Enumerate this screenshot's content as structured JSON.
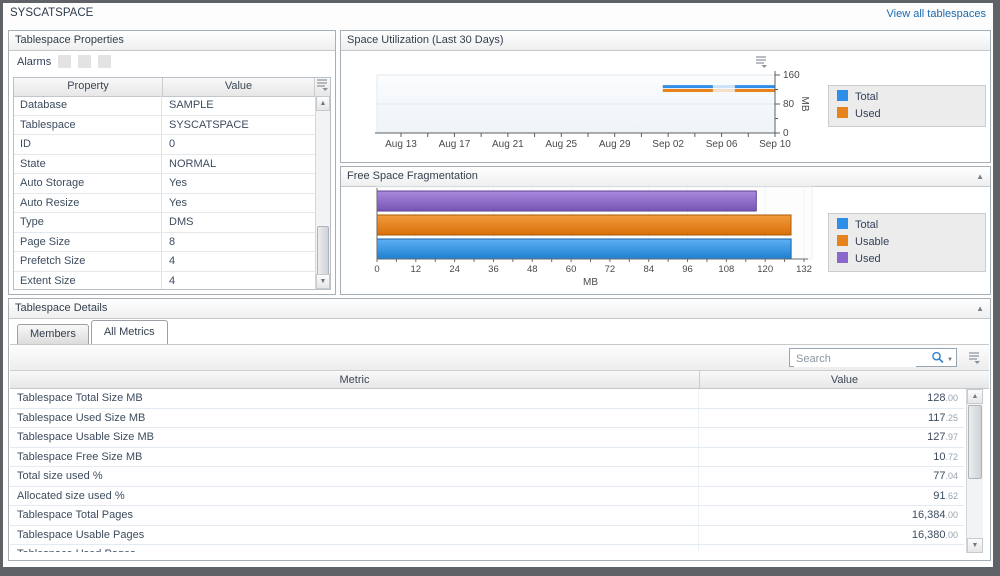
{
  "header": {
    "title": "SYSCATSPACE",
    "view_all_link": "View all tablespaces"
  },
  "properties_panel": {
    "title": "Tablespace Properties",
    "alarms_label": "Alarms",
    "columns": [
      "Property",
      "Value"
    ],
    "rows": [
      {
        "property": "Database",
        "value": "SAMPLE"
      },
      {
        "property": "Tablespace",
        "value": "SYSCATSPACE"
      },
      {
        "property": "ID",
        "value": "0"
      },
      {
        "property": "State",
        "value": "NORMAL"
      },
      {
        "property": "Auto Storage",
        "value": "Yes"
      },
      {
        "property": "Auto Resize",
        "value": "Yes"
      },
      {
        "property": "Type",
        "value": "DMS"
      },
      {
        "property": "Page Size",
        "value": "8"
      },
      {
        "property": "Prefetch Size",
        "value": "4"
      },
      {
        "property": "Extent Size",
        "value": "4"
      }
    ]
  },
  "space_utilization_panel": {
    "title": "Space Utilization (Last 30 Days)"
  },
  "fragmentation_panel": {
    "title": "Free Space Fragmentation"
  },
  "details_panel": {
    "title": "Tablespace Details",
    "tabs": [
      {
        "label": "Members",
        "active": false
      },
      {
        "label": "All Metrics",
        "active": true
      }
    ],
    "search_placeholder": "Search",
    "columns": [
      "Metric",
      "Value"
    ],
    "rows": [
      {
        "metric": "Tablespace Total Size MB",
        "value_int": "128",
        "value_dec": "00"
      },
      {
        "metric": "Tablespace Used Size MB",
        "value_int": "117",
        "value_dec": "25"
      },
      {
        "metric": "Tablespace Usable Size MB",
        "value_int": "127",
        "value_dec": "97"
      },
      {
        "metric": "Tablespace Free Size MB",
        "value_int": "10",
        "value_dec": "72"
      },
      {
        "metric": "Total size used %",
        "value_int": "77",
        "value_dec": "04"
      },
      {
        "metric": "Allocated size used %",
        "value_int": "91",
        "value_dec": "62"
      },
      {
        "metric": "Tablespace Total Pages",
        "value_int": "16,384",
        "value_dec": "00"
      },
      {
        "metric": "Tablespace Usable Pages",
        "value_int": "16,380",
        "value_dec": "00"
      }
    ],
    "partial_row_metric": "Tablespace Used Pages"
  },
  "chart_data": [
    {
      "type": "line",
      "title": "Space Utilization (Last 30 Days)",
      "x_ticks": [
        "Aug 13",
        "Aug 17",
        "Aug 21",
        "Aug 25",
        "Aug 29",
        "Sep 02",
        "Sep 06",
        "Sep 10"
      ],
      "y_ticks": [
        0,
        80,
        160
      ],
      "y_minor_ticks": [
        40,
        120
      ],
      "ylabel": "MB",
      "ylim": [
        0,
        160
      ],
      "legend_position": "right",
      "series": [
        {
          "name": "Total",
          "color": "#2f8fe8",
          "value": 128
        },
        {
          "name": "Used",
          "color": "#e8821c",
          "value": 117.25
        }
      ],
      "data_window": {
        "start_frac": 0.718,
        "fade_start_frac": 0.844,
        "fade_end_frac": 0.899,
        "end_frac": 1.0
      },
      "note": "flat lines visible only from about Sep 01 to Sep 10, with a lighter segment around Sep 03 - Sep 05"
    },
    {
      "type": "bar",
      "orientation": "horizontal",
      "title": "Free Space Fragmentation",
      "categories": [
        "Used",
        "Usable",
        "Total"
      ],
      "values": [
        117.25,
        127.97,
        128
      ],
      "colors": [
        "#8b68cc",
        "#e8821c",
        "#2f8fe8"
      ],
      "legend": [
        "Total",
        "Usable",
        "Used"
      ],
      "legend_colors": [
        "#2f8fe8",
        "#e8821c",
        "#8b68cc"
      ],
      "x_ticks": [
        0,
        12,
        24,
        36,
        48,
        60,
        72,
        84,
        96,
        108,
        120,
        132
      ],
      "xlabel": "MB",
      "xlim": [
        0,
        132
      ],
      "legend_position": "right"
    }
  ]
}
